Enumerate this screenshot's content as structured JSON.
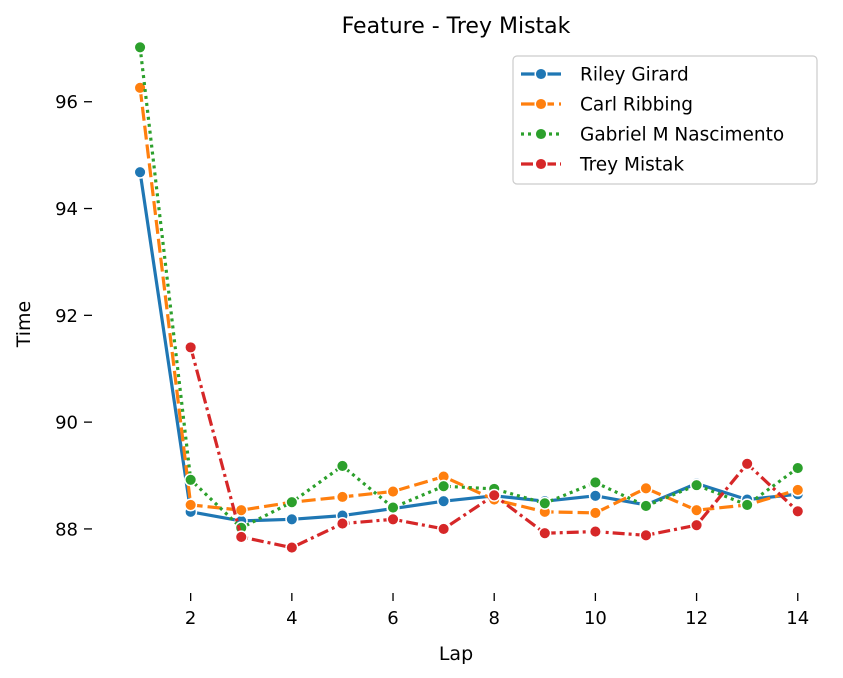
{
  "chart_data": {
    "type": "line",
    "title": "Feature - Trey Mistak",
    "xlabel": "Lap",
    "ylabel": "Time",
    "xlim": [
      0.05,
      14.4
    ],
    "ylim": [
      86.8,
      97.1
    ],
    "xticks": [
      2,
      4,
      6,
      8,
      10,
      12,
      14
    ],
    "yticks": [
      88,
      90,
      92,
      94,
      96
    ],
    "grid": false,
    "legend_position": "top-right",
    "x": [
      1,
      2,
      3,
      4,
      5,
      6,
      7,
      8,
      9,
      10,
      11,
      12,
      13,
      14
    ],
    "series": [
      {
        "name": "Riley Girard",
        "color": "#1f77b4",
        "dash": "solid",
        "values": [
          94.68,
          88.32,
          88.15,
          88.18,
          88.25,
          88.38,
          88.52,
          88.62,
          88.52,
          88.62,
          88.45,
          88.85,
          88.55,
          88.65
        ]
      },
      {
        "name": "Carl Ribbing",
        "color": "#ff7f0e",
        "dash": "dashed",
        "values": [
          96.26,
          88.45,
          88.35,
          88.5,
          88.6,
          88.7,
          88.98,
          88.55,
          88.32,
          88.3,
          88.76,
          88.35,
          88.45,
          88.73
        ]
      },
      {
        "name": "Gabriel M Nascimento",
        "color": "#2ca02c",
        "dash": "dotted",
        "values": [
          97.02,
          88.92,
          88.02,
          88.5,
          89.18,
          88.4,
          88.8,
          88.75,
          88.48,
          88.87,
          88.43,
          88.82,
          88.45,
          89.14
        ]
      },
      {
        "name": "Trey Mistak",
        "color": "#d62728",
        "dash": "dashdot",
        "values": [
          null,
          91.4,
          87.85,
          87.65,
          88.1,
          88.18,
          88.0,
          88.63,
          87.92,
          87.95,
          87.88,
          88.07,
          89.22,
          88.33
        ]
      }
    ]
  }
}
